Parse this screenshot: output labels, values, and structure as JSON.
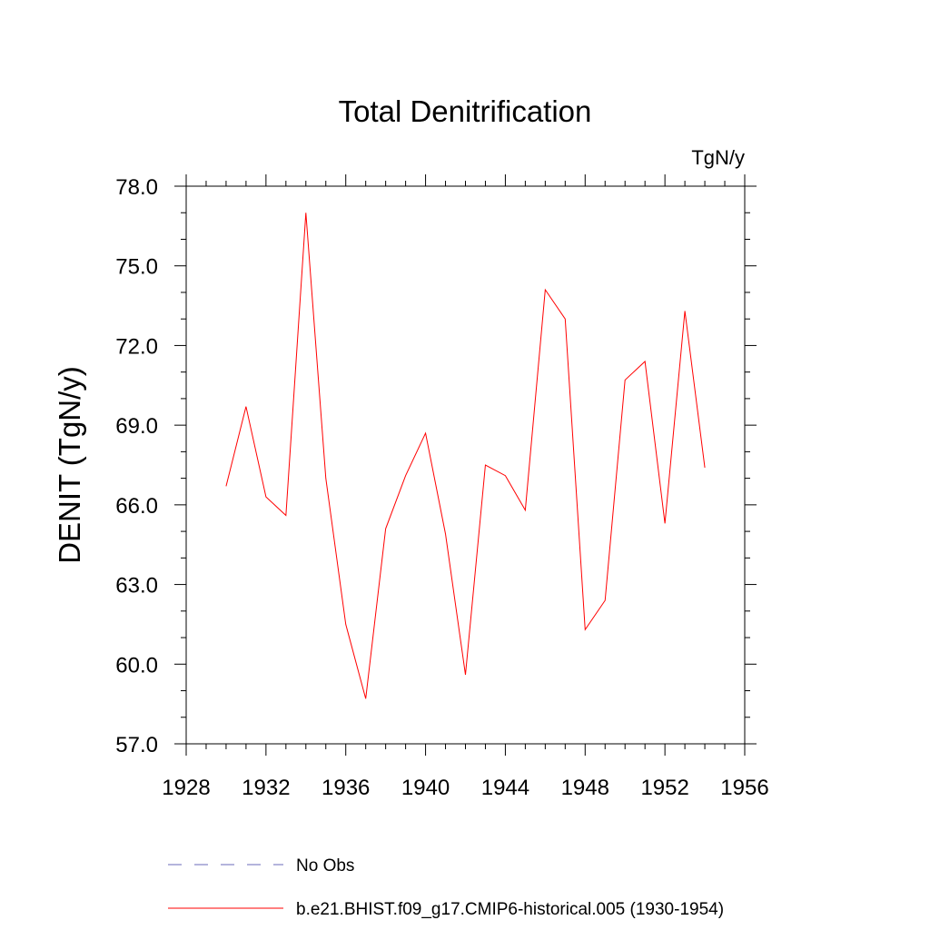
{
  "chart_data": {
    "type": "line",
    "title": "Total Denitrification",
    "units_label": "TgN/y",
    "ylabel": "DENIT  (TgN/y)",
    "xlabel": "",
    "xlim": [
      1928,
      1956
    ],
    "ylim": [
      57.0,
      78.0
    ],
    "x_ticks": [
      1928,
      1932,
      1936,
      1940,
      1944,
      1948,
      1952,
      1956
    ],
    "x_tick_labels": [
      "1928",
      "1932",
      "1936",
      "1940",
      "1944",
      "1948",
      "1952",
      "1956"
    ],
    "y_ticks": [
      57.0,
      60.0,
      63.0,
      66.0,
      69.0,
      72.0,
      75.0,
      78.0
    ],
    "y_tick_labels": [
      "57.0",
      "60.0",
      "63.0",
      "66.0",
      "69.0",
      "72.0",
      "75.0",
      "78.0"
    ],
    "grid": false,
    "legend_position": "bottom",
    "series": [
      {
        "name": "b.e21.BHIST.f09_g17.CMIP6-historical.005 (1930-1954)",
        "color": "#ff0000",
        "style": "solid",
        "x": [
          1930,
          1931,
          1932,
          1933,
          1934,
          1935,
          1936,
          1937,
          1938,
          1939,
          1940,
          1941,
          1942,
          1943,
          1944,
          1945,
          1946,
          1947,
          1948,
          1949,
          1950,
          1951,
          1952,
          1953,
          1954
        ],
        "y": [
          66.7,
          69.7,
          66.3,
          65.6,
          77.0,
          67.0,
          61.5,
          58.7,
          65.1,
          67.1,
          68.7,
          64.9,
          59.6,
          67.5,
          67.1,
          65.8,
          74.1,
          73.0,
          61.3,
          62.4,
          70.7,
          71.4,
          65.3,
          73.3,
          67.4
        ]
      }
    ],
    "legend": [
      {
        "label": "No Obs",
        "color": "#6a6ab8",
        "style": "dashed"
      },
      {
        "label": "b.e21.BHIST.f09_g17.CMIP6-historical.005 (1930-1954)",
        "color": "#ff0000",
        "style": "solid"
      }
    ]
  }
}
